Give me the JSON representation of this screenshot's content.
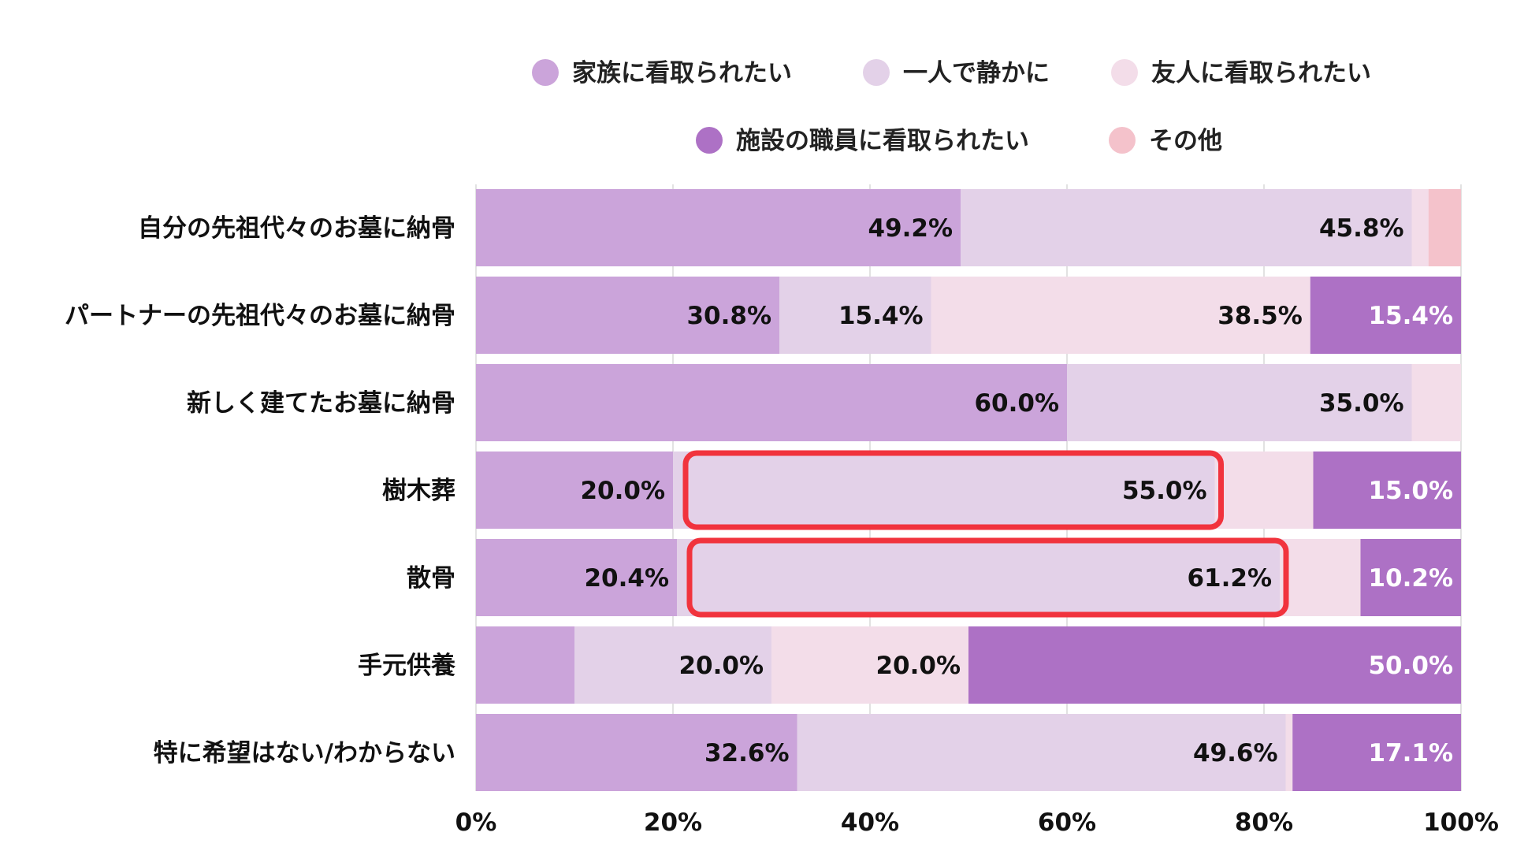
{
  "chart_data": {
    "type": "bar",
    "orientation": "horizontal",
    "stacked": true,
    "categories": [
      "自分の先祖代々のお墓に納骨",
      "パートナーの先祖代々のお墓に納骨",
      "新しく建てたお墓に納骨",
      "樹木葬",
      "散骨",
      "手元供養",
      "特に希望はない/わからない"
    ],
    "series": [
      {
        "name": "家族に看取られたい",
        "color": "#cba4da",
        "values": [
          49.2,
          30.8,
          60.0,
          20.0,
          20.4,
          10.0,
          32.6
        ],
        "labels": [
          "49.2%",
          "30.8%",
          "60.0%",
          "20.0%",
          "20.4%",
          "",
          "32.6%"
        ]
      },
      {
        "name": "一人で静かに",
        "color": "#e3d1e8",
        "values": [
          45.8,
          15.4,
          35.0,
          55.0,
          61.2,
          20.0,
          49.6
        ],
        "labels": [
          "45.8%",
          "15.4%",
          "35.0%",
          "55.0%",
          "61.2%",
          "20.0%",
          "49.6%"
        ]
      },
      {
        "name": "友人に看取られたい",
        "color": "#f3dde9",
        "values": [
          1.7,
          38.5,
          5.0,
          10.0,
          8.2,
          20.0,
          0.7
        ],
        "labels": [
          "",
          "38.5%",
          "",
          "",
          "",
          "20.0%",
          ""
        ]
      },
      {
        "name": "施設の職員に看取られたい",
        "color": "#ad71c5",
        "values": [
          0,
          15.4,
          0,
          15.0,
          10.2,
          50.0,
          17.1
        ],
        "labels": [
          "",
          "15.4%",
          "",
          "15.0%",
          "10.2%",
          "50.0%",
          "17.1%"
        ]
      },
      {
        "name": "その他",
        "color": "#f4c2cb",
        "values": [
          3.3,
          0,
          0,
          0,
          0,
          0,
          0
        ],
        "labels": [
          "",
          "",
          "",
          "",
          "",
          "",
          ""
        ]
      }
    ],
    "xlim": [
      0,
      100
    ],
    "x_ticks": [
      "0%",
      "20%",
      "40%",
      "60%",
      "80%",
      "100%"
    ],
    "grid": true,
    "legend_position": "top",
    "highlights": [
      {
        "category": "樹木葬",
        "series": "一人で静かに",
        "color": "#f1333d"
      },
      {
        "category": "散骨",
        "series": "一人で静かに",
        "color": "#f1333d"
      }
    ]
  }
}
